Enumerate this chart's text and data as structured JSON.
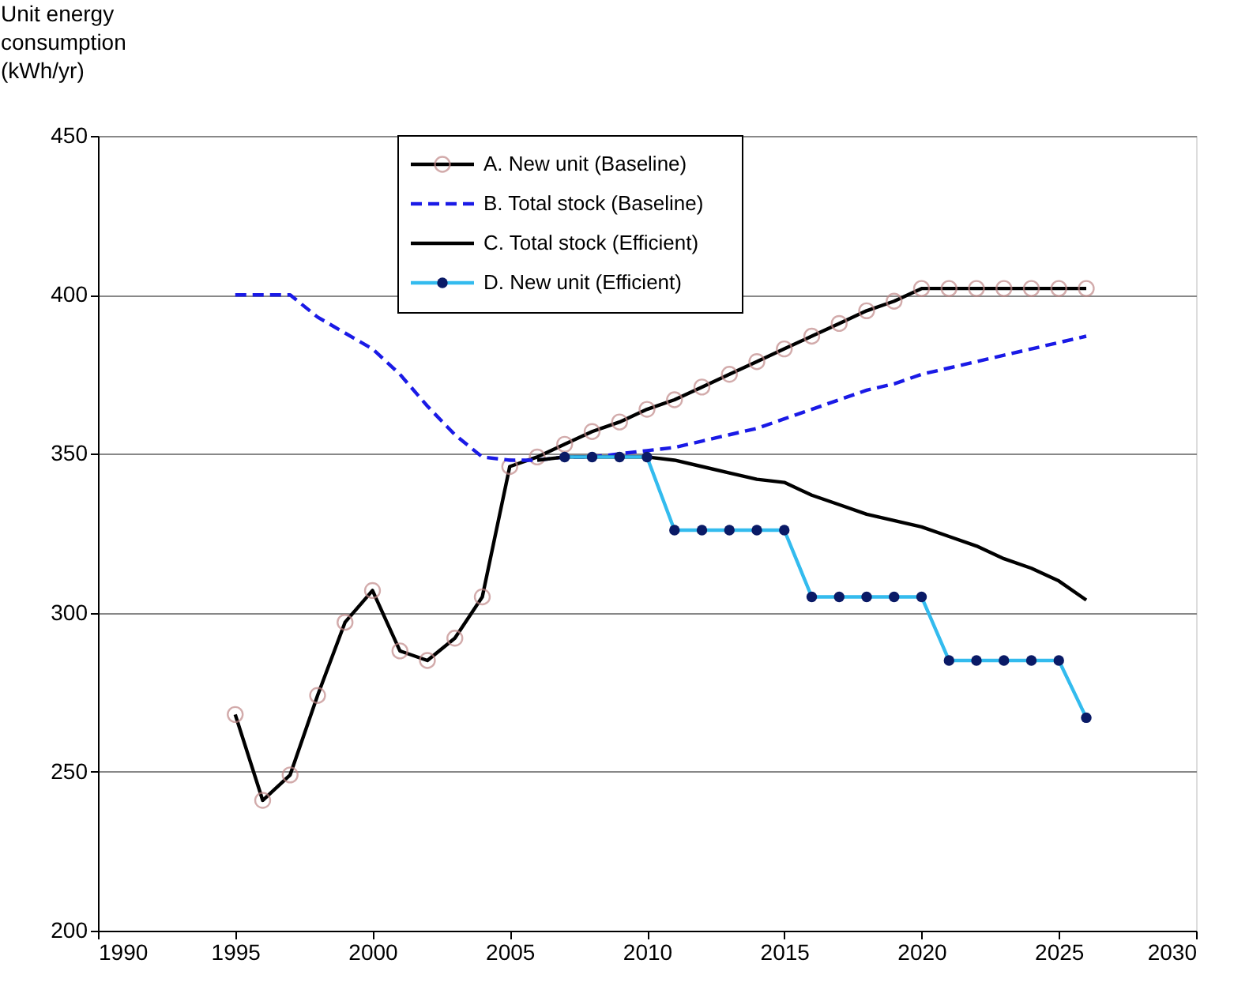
{
  "chart_data": {
    "type": "line",
    "ylabel": "Unit energy\nconsumption\n(kWh/yr)",
    "xlim": [
      1990,
      2030
    ],
    "ylim": [
      200,
      450
    ],
    "xticks": [
      1990,
      1995,
      2000,
      2005,
      2010,
      2015,
      2020,
      2025,
      2030
    ],
    "yticks": [
      200,
      250,
      300,
      350,
      400,
      450
    ],
    "grid": "y",
    "legend": "top left",
    "series": [
      {
        "name": "A. New unit (Baseline)",
        "color": "#000000",
        "marker": "circle",
        "line_style": "solid",
        "x": [
          1995,
          1996,
          1997,
          1998,
          1999,
          2000,
          2001,
          2002,
          2003,
          2004,
          2005,
          2006,
          2007,
          2008,
          2009,
          2010,
          2011,
          2012,
          2013,
          2014,
          2015,
          2016,
          2017,
          2018,
          2019,
          2020,
          2021,
          2022,
          2023,
          2024,
          2025,
          2026
        ],
        "values": [
          268,
          241,
          249,
          274,
          297,
          307,
          288,
          285,
          292,
          305,
          346,
          349,
          353,
          357,
          360,
          364,
          367,
          371,
          375,
          379,
          383,
          387,
          391,
          395,
          398,
          402,
          402,
          402,
          402,
          402,
          402,
          402
        ]
      },
      {
        "name": "B. Total stock (Baseline)",
        "color": "#1a1ae6",
        "marker": "none",
        "line_style": "dashed",
        "x": [
          1995,
          1996,
          1997,
          1998,
          1999,
          2000,
          2001,
          2002,
          2003,
          2004,
          2005,
          2006,
          2007,
          2008,
          2009,
          2010,
          2011,
          2012,
          2013,
          2014,
          2015,
          2016,
          2017,
          2018,
          2019,
          2020,
          2021,
          2022,
          2023,
          2024,
          2025,
          2026
        ],
        "values": [
          400,
          400,
          400,
          393,
          388,
          383,
          375,
          365,
          356,
          349,
          348,
          348,
          349,
          349,
          350,
          351,
          352,
          354,
          356,
          358,
          361,
          364,
          367,
          370,
          372,
          375,
          377,
          379,
          381,
          383,
          385,
          387
        ]
      },
      {
        "name": "C. Total stock (Efficient)",
        "color": "#000000",
        "marker": "none",
        "line_style": "solid",
        "x": [
          2006,
          2007,
          2008,
          2009,
          2010,
          2011,
          2012,
          2013,
          2014,
          2015,
          2016,
          2017,
          2018,
          2019,
          2020,
          2021,
          2022,
          2023,
          2024,
          2025,
          2026
        ],
        "values": [
          348,
          349,
          349,
          349,
          349,
          348,
          346,
          344,
          342,
          341,
          337,
          334,
          331,
          329,
          327,
          324,
          321,
          317,
          314,
          310,
          304
        ]
      },
      {
        "name": "D. New unit (Efficient)",
        "color": "#33bbee",
        "marker": "circle",
        "line_style": "solid",
        "x": [
          2007,
          2008,
          2009,
          2010,
          2011,
          2012,
          2013,
          2014,
          2015,
          2016,
          2017,
          2018,
          2019,
          2020,
          2021,
          2022,
          2023,
          2024,
          2025,
          2026
        ],
        "values": [
          349,
          349,
          349,
          349,
          326,
          326,
          326,
          326,
          326,
          305,
          305,
          305,
          305,
          305,
          285,
          285,
          285,
          285,
          285,
          267
        ]
      }
    ]
  }
}
